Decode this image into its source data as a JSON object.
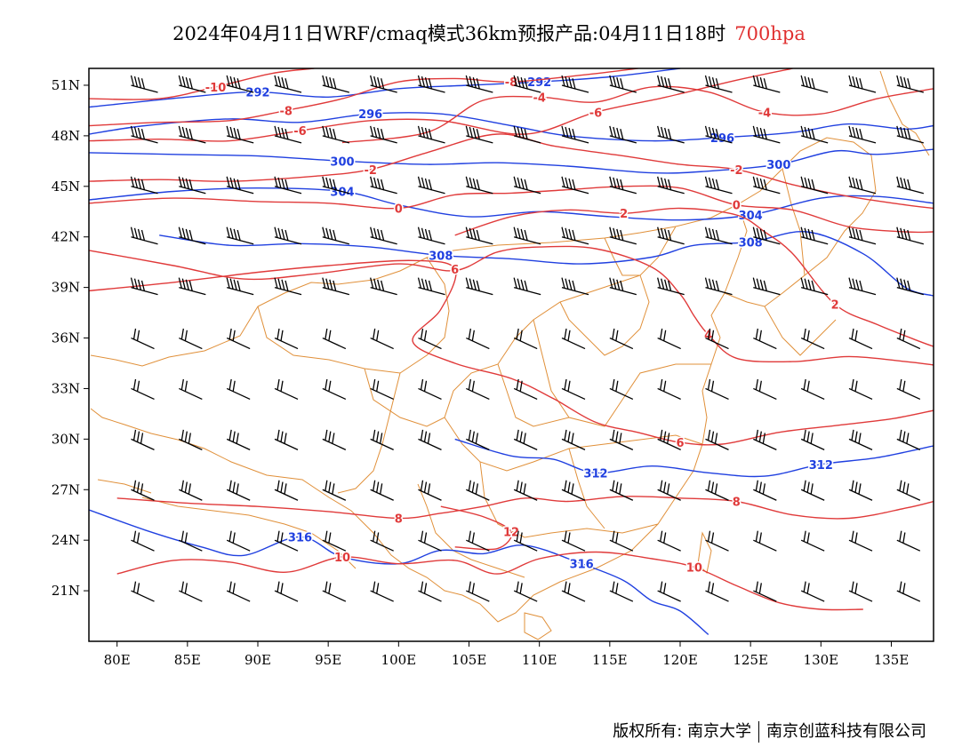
{
  "title": {
    "main": "2024年04月11日WRF/cmaq模式36km预报产品:04月11日18时",
    "level": "700hpa"
  },
  "colors": {
    "temperature": "#e03a3a",
    "height": "#2040e0",
    "boundary": "#e0903a",
    "barb": "#000000"
  },
  "axes": {
    "x_ticks": [
      "80E",
      "85E",
      "90E",
      "95E",
      "100E",
      "105E",
      "110E",
      "115E",
      "120E",
      "125E",
      "130E",
      "135E"
    ],
    "x_values": [
      80,
      85,
      90,
      95,
      100,
      105,
      110,
      115,
      120,
      125,
      130,
      135
    ],
    "y_ticks": [
      "51N",
      "48N",
      "45N",
      "42N",
      "39N",
      "36N",
      "33N",
      "30N",
      "27N",
      "24N",
      "21N"
    ],
    "y_values": [
      51,
      48,
      45,
      42,
      39,
      36,
      33,
      30,
      27,
      24,
      21
    ],
    "lon_range": [
      78,
      138
    ],
    "lat_range": [
      18,
      52
    ]
  },
  "height_contours": [
    {
      "label": "292",
      "points": [
        [
          78,
          49.7
        ],
        [
          85,
          50.3
        ],
        [
          90,
          50.6
        ],
        [
          95,
          50.3
        ],
        [
          100,
          50.8
        ],
        [
          105,
          51.0
        ],
        [
          110,
          51.2
        ],
        [
          115,
          51.5
        ],
        [
          120,
          52
        ]
      ]
    },
    {
      "label": "296",
      "points": [
        [
          78,
          48.1
        ],
        [
          82,
          48.6
        ],
        [
          88,
          49.0
        ],
        [
          93,
          48.8
        ],
        [
          98,
          49.3
        ],
        [
          103,
          49.3
        ],
        [
          108,
          48.6
        ],
        [
          112,
          48.0
        ],
        [
          118,
          47.7
        ],
        [
          123,
          47.9
        ],
        [
          128,
          48.2
        ],
        [
          132,
          48.7
        ],
        [
          136,
          48.4
        ],
        [
          138,
          48.6
        ]
      ]
    },
    {
      "label": "300",
      "points": [
        [
          78,
          47.0
        ],
        [
          84,
          46.9
        ],
        [
          90,
          46.8
        ],
        [
          96,
          46.5
        ],
        [
          102,
          46.3
        ],
        [
          107,
          46.4
        ],
        [
          112,
          46.2
        ],
        [
          118,
          45.8
        ],
        [
          122,
          45.9
        ],
        [
          127,
          46.3
        ],
        [
          131,
          47.1
        ],
        [
          134,
          46.9
        ],
        [
          138,
          47.2
        ]
      ]
    },
    {
      "label": "304",
      "points": [
        [
          78,
          44.2
        ],
        [
          84,
          44.7
        ],
        [
          90,
          44.9
        ],
        [
          96,
          44.7
        ],
        [
          100,
          43.9
        ],
        [
          105,
          43.2
        ],
        [
          110,
          43.5
        ],
        [
          115,
          43.2
        ],
        [
          120,
          43.0
        ],
        [
          125,
          43.3
        ],
        [
          130,
          44.3
        ],
        [
          134,
          44.4
        ],
        [
          138,
          44.0
        ]
      ]
    },
    {
      "label": "308",
      "points": [
        [
          83,
          42.1
        ],
        [
          88,
          41.5
        ],
        [
          93,
          41.6
        ],
        [
          98,
          41.4
        ],
        [
          103,
          40.9
        ],
        [
          108,
          40.7
        ],
        [
          113,
          40.4
        ],
        [
          118,
          40.8
        ],
        [
          121,
          41.5
        ],
        [
          125,
          41.7
        ],
        [
          129,
          42.3
        ],
        [
          133,
          41.0
        ],
        [
          136,
          39.0
        ],
        [
          138,
          38.5
        ]
      ]
    },
    {
      "label": "312",
      "points": [
        [
          104,
          30.0
        ],
        [
          108,
          29.0
        ],
        [
          111,
          28.8
        ],
        [
          114,
          28.0
        ],
        [
          118,
          28.4
        ],
        [
          122,
          28.0
        ],
        [
          126,
          27.8
        ],
        [
          130,
          28.5
        ],
        [
          134,
          28.9
        ],
        [
          138,
          29.6
        ]
      ]
    },
    {
      "label": "316",
      "points": [
        [
          78,
          25.8
        ],
        [
          82,
          24.6
        ],
        [
          86,
          23.6
        ],
        [
          89,
          23.1
        ],
        [
          93,
          24.2
        ],
        [
          96,
          23.0
        ],
        [
          100,
          22.6
        ],
        [
          103,
          23.4
        ],
        [
          106,
          23.2
        ],
        [
          109,
          23.7
        ],
        [
          113,
          22.6
        ],
        [
          116,
          21.6
        ],
        [
          118,
          20.4
        ],
        [
          120,
          19.8
        ],
        [
          122,
          18.4
        ]
      ]
    }
  ],
  "temperature_contours": [
    {
      "label": "-10",
      "points": [
        [
          78,
          50.2
        ],
        [
          83,
          50.2
        ],
        [
          87,
          50.9
        ],
        [
          91,
          51.7
        ],
        [
          94,
          52
        ]
      ]
    },
    {
      "label": "-8",
      "points": [
        [
          78,
          48.6
        ],
        [
          83,
          48.8
        ],
        [
          88,
          48.9
        ],
        [
          92,
          49.5
        ],
        [
          96,
          50.2
        ],
        [
          100,
          51.2
        ],
        [
          104,
          51.4
        ],
        [
          108,
          51.2
        ],
        [
          113,
          51.6
        ],
        [
          117,
          52
        ]
      ]
    },
    {
      "label": "-6",
      "points": [
        [
          78,
          47.7
        ],
        [
          83,
          47.8
        ],
        [
          88,
          47.7
        ],
        [
          93,
          48.3
        ],
        [
          98,
          48.9
        ],
        [
          103,
          48.9
        ],
        [
          109,
          48.1
        ],
        [
          114,
          49.4
        ],
        [
          119,
          50.3
        ],
        [
          124,
          51.3
        ],
        [
          128,
          52
        ]
      ]
    },
    {
      "label": "-4",
      "points": [
        [
          96,
          47.6
        ],
        [
          102,
          48.2
        ],
        [
          106,
          50.1
        ],
        [
          110,
          50.3
        ],
        [
          114,
          50.0
        ],
        [
          118,
          50.9
        ],
        [
          122,
          50.6
        ],
        [
          126,
          49.4
        ],
        [
          130,
          49.3
        ],
        [
          134,
          50.2
        ],
        [
          138,
          50.8
        ]
      ]
    },
    {
      "label": "-2",
      "points": [
        [
          78,
          45.3
        ],
        [
          83,
          45.4
        ],
        [
          88,
          45.3
        ],
        [
          94,
          45.6
        ],
        [
          98,
          46.0
        ],
        [
          102,
          47.0
        ],
        [
          107,
          48.1
        ],
        [
          111,
          47.4
        ],
        [
          116,
          46.8
        ],
        [
          120,
          46.3
        ],
        [
          124,
          46.0
        ],
        [
          128,
          45.1
        ],
        [
          132,
          44.4
        ],
        [
          136,
          43.9
        ],
        [
          138,
          43.7
        ]
      ]
    },
    {
      "label": "0",
      "points": [
        [
          78,
          44.0
        ],
        [
          84,
          44.3
        ],
        [
          90,
          44.1
        ],
        [
          95,
          44.0
        ],
        [
          100,
          43.7
        ],
        [
          104,
          44.5
        ],
        [
          108,
          44.6
        ],
        [
          112,
          44.8
        ],
        [
          116,
          45.0
        ],
        [
          120,
          44.9
        ],
        [
          124,
          43.9
        ],
        [
          128,
          43.6
        ],
        [
          132,
          42.6
        ],
        [
          136,
          42.3
        ],
        [
          138,
          42.3
        ]
      ]
    },
    {
      "label": "2",
      "points": [
        [
          104,
          42.1
        ],
        [
          108,
          43.2
        ],
        [
          112,
          43.6
        ],
        [
          116,
          43.4
        ],
        [
          120,
          43.7
        ],
        [
          124,
          43.3
        ],
        [
          126,
          42.3
        ],
        [
          128,
          41.0
        ],
        [
          131,
          38.0
        ],
        [
          134,
          36.8
        ],
        [
          137,
          35.8
        ],
        [
          138,
          35.5
        ]
      ]
    },
    {
      "label": "4",
      "points": [
        [
          78,
          41.2
        ],
        [
          84,
          40.3
        ],
        [
          89,
          39.5
        ],
        [
          94,
          39.8
        ],
        [
          100,
          40.4
        ],
        [
          104,
          40.0
        ],
        [
          107,
          41.1
        ],
        [
          110,
          41.4
        ],
        [
          114,
          41.3
        ],
        [
          118,
          40.2
        ],
        [
          120,
          38.6
        ],
        [
          121,
          37.3
        ],
        [
          122,
          36.2
        ],
        [
          124,
          34.8
        ],
        [
          128,
          34.6
        ],
        [
          132,
          34.9
        ],
        [
          136,
          34.6
        ],
        [
          138,
          34.4
        ]
      ]
    },
    {
      "label": "6",
      "points": [
        [
          78,
          38.8
        ],
        [
          84,
          39.3
        ],
        [
          90,
          39.9
        ],
        [
          95,
          40.3
        ],
        [
          101,
          40.6
        ],
        [
          104,
          40.1
        ],
        [
          103,
          37.7
        ],
        [
          101,
          35.8
        ],
        [
          104,
          34.5
        ],
        [
          108,
          33.6
        ],
        [
          111,
          32.4
        ],
        [
          114,
          31.0
        ],
        [
          117,
          30.4
        ],
        [
          120,
          29.8
        ],
        [
          123,
          29.7
        ],
        [
          127,
          30.4
        ],
        [
          131,
          30.8
        ],
        [
          135,
          31.2
        ],
        [
          138,
          31.7
        ]
      ]
    },
    {
      "label": "8",
      "points": [
        [
          80,
          26.5
        ],
        [
          85,
          26.2
        ],
        [
          90,
          26.0
        ],
        [
          95,
          25.7
        ],
        [
          100,
          25.3
        ],
        [
          103,
          25.6
        ],
        [
          106,
          26.0
        ],
        [
          109,
          26.5
        ],
        [
          112,
          26.3
        ],
        [
          116,
          26.6
        ],
        [
          120,
          26.5
        ],
        [
          124,
          26.3
        ],
        [
          128,
          25.5
        ],
        [
          132,
          25.3
        ],
        [
          136,
          25.9
        ],
        [
          138,
          26.3
        ]
      ]
    },
    {
      "label": "10",
      "points": [
        [
          80,
          22.0
        ],
        [
          84,
          22.8
        ],
        [
          88,
          22.7
        ],
        [
          92,
          22.1
        ],
        [
          96,
          23.0
        ],
        [
          100,
          22.6
        ],
        [
          104,
          22.8
        ],
        [
          107,
          22.0
        ],
        [
          110,
          22.9
        ],
        [
          114,
          23.3
        ],
        [
          118,
          22.9
        ],
        [
          121,
          22.4
        ],
        [
          124,
          21.3
        ],
        [
          127,
          20.3
        ],
        [
          130,
          19.9
        ],
        [
          133,
          19.9
        ]
      ]
    },
    {
      "label": "12",
      "points": [
        [
          103,
          26.0
        ],
        [
          106,
          25.4
        ],
        [
          108,
          24.5
        ],
        [
          107,
          23.5
        ],
        [
          104,
          23.6
        ]
      ]
    }
  ],
  "footer": {
    "copyright": "版权所有: 南京大学",
    "company": "南京创蓝科技有限公司"
  }
}
